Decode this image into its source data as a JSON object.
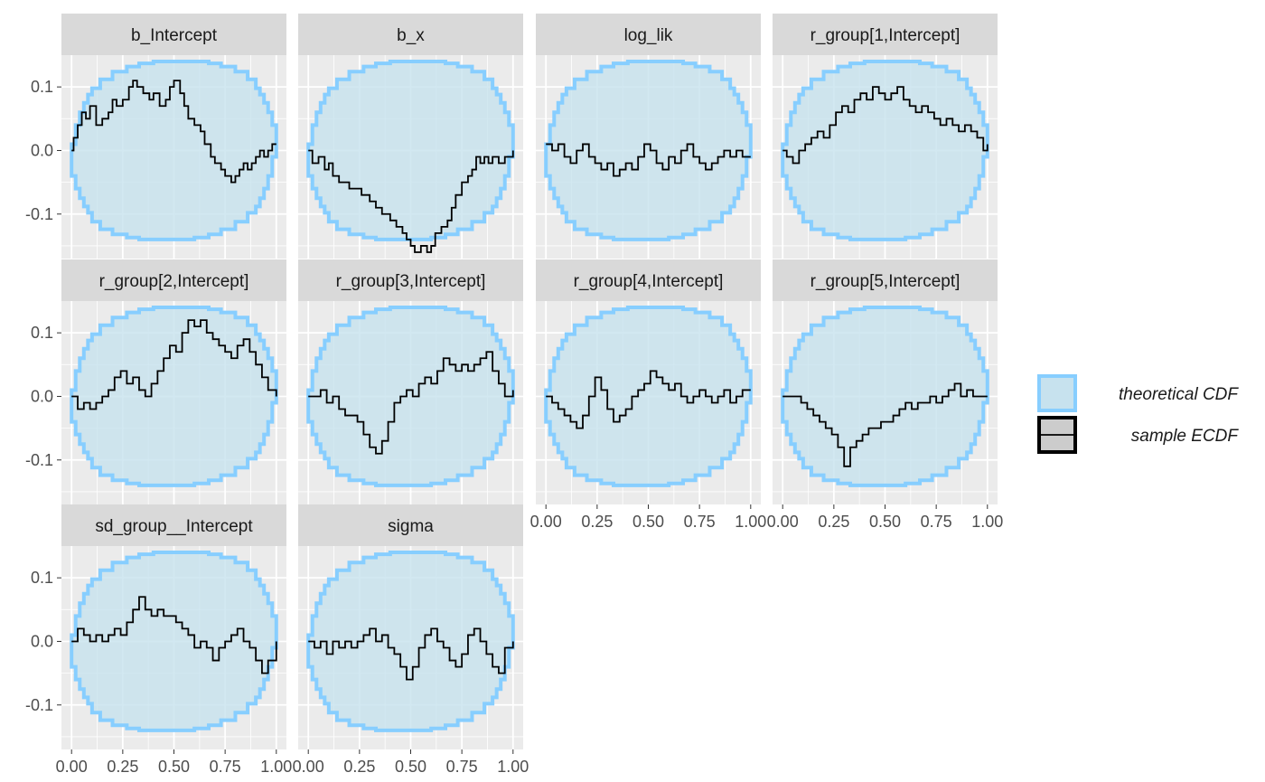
{
  "chart_data": {
    "type": "line",
    "layout": "facet_wrap",
    "ncol": 4,
    "xlim": [
      0,
      1
    ],
    "ylim": [
      -0.17,
      0.15
    ],
    "x_ticks": [
      0,
      0.25,
      0.5,
      0.75,
      1
    ],
    "x_tick_labels": [
      "0.00",
      "0.25",
      "0.50",
      "0.75",
      "1.00"
    ],
    "y_ticks": [
      -0.1,
      0,
      0.1
    ],
    "y_tick_labels": [
      "-0.1",
      "0.0",
      "0.1"
    ],
    "grid": true,
    "legend_position": "right",
    "legend": [
      {
        "key": "band",
        "label": "theoretical CDF",
        "color": "#87ceff",
        "fill": "#c7e2ee"
      },
      {
        "key": "line",
        "label": "sample ECDF",
        "color": "#000000",
        "fill": "#cccccc"
      }
    ],
    "band": {
      "x": [
        0,
        0.02,
        0.04,
        0.06,
        0.08,
        0.1,
        0.14,
        0.2,
        0.27,
        0.33,
        0.4,
        0.5,
        0.6,
        0.67,
        0.73,
        0.8,
        0.86,
        0.9,
        0.92,
        0.94,
        0.96,
        0.98,
        1
      ],
      "upper": [
        0.01,
        0.04,
        0.06,
        0.075,
        0.088,
        0.098,
        0.112,
        0.124,
        0.132,
        0.137,
        0.14,
        0.14,
        0.14,
        0.137,
        0.132,
        0.124,
        0.112,
        0.098,
        0.088,
        0.075,
        0.06,
        0.04,
        0.01
      ],
      "lower": [
        -0.01,
        -0.04,
        -0.06,
        -0.075,
        -0.088,
        -0.098,
        -0.112,
        -0.124,
        -0.132,
        -0.137,
        -0.14,
        -0.14,
        -0.14,
        -0.137,
        -0.132,
        -0.124,
        -0.112,
        -0.098,
        -0.088,
        -0.075,
        -0.06,
        -0.04,
        -0.01
      ]
    },
    "panels": [
      {
        "title": "b_Intercept",
        "x": [
          0,
          0.01,
          0.03,
          0.05,
          0.07,
          0.09,
          0.12,
          0.15,
          0.18,
          0.2,
          0.22,
          0.25,
          0.28,
          0.3,
          0.32,
          0.35,
          0.38,
          0.4,
          0.43,
          0.46,
          0.48,
          0.5,
          0.53,
          0.55,
          0.57,
          0.6,
          0.63,
          0.65,
          0.68,
          0.7,
          0.73,
          0.75,
          0.78,
          0.8,
          0.82,
          0.84,
          0.86,
          0.88,
          0.9,
          0.92,
          0.94,
          0.96,
          0.98,
          1
        ],
        "y": [
          0,
          0.02,
          0.04,
          0.06,
          0.05,
          0.07,
          0.04,
          0.05,
          0.06,
          0.08,
          0.07,
          0.08,
          0.1,
          0.11,
          0.1,
          0.09,
          0.08,
          0.09,
          0.07,
          0.08,
          0.1,
          0.11,
          0.09,
          0.07,
          0.05,
          0.04,
          0.03,
          0.01,
          -0.01,
          -0.02,
          -0.03,
          -0.04,
          -0.05,
          -0.04,
          -0.03,
          -0.02,
          -0.03,
          -0.02,
          -0.01,
          0,
          -0.01,
          0,
          0.01,
          0.01
        ]
      },
      {
        "title": "b_x",
        "x": [
          0,
          0.02,
          0.05,
          0.08,
          0.1,
          0.12,
          0.15,
          0.18,
          0.2,
          0.23,
          0.26,
          0.3,
          0.33,
          0.36,
          0.4,
          0.43,
          0.46,
          0.48,
          0.5,
          0.52,
          0.55,
          0.58,
          0.6,
          0.62,
          0.65,
          0.68,
          0.7,
          0.72,
          0.75,
          0.78,
          0.8,
          0.82,
          0.84,
          0.86,
          0.88,
          0.9,
          0.93,
          0.96,
          1
        ],
        "y": [
          0,
          -0.02,
          -0.01,
          -0.03,
          -0.02,
          -0.04,
          -0.05,
          -0.05,
          -0.06,
          -0.06,
          -0.07,
          -0.08,
          -0.09,
          -0.1,
          -0.11,
          -0.12,
          -0.13,
          -0.14,
          -0.15,
          -0.16,
          -0.15,
          -0.16,
          -0.15,
          -0.13,
          -0.12,
          -0.11,
          -0.09,
          -0.07,
          -0.05,
          -0.04,
          -0.03,
          -0.01,
          -0.02,
          -0.01,
          -0.02,
          -0.01,
          -0.02,
          -0.01,
          0
        ]
      },
      {
        "title": "log_lik",
        "x": [
          0,
          0.03,
          0.06,
          0.09,
          0.12,
          0.15,
          0.18,
          0.21,
          0.24,
          0.27,
          0.3,
          0.33,
          0.36,
          0.39,
          0.42,
          0.45,
          0.48,
          0.51,
          0.54,
          0.57,
          0.6,
          0.63,
          0.66,
          0.69,
          0.72,
          0.75,
          0.78,
          0.81,
          0.84,
          0.87,
          0.9,
          0.93,
          0.96,
          1
        ],
        "y": [
          0.01,
          0,
          0.01,
          -0.01,
          -0.02,
          0,
          0.01,
          -0.01,
          -0.02,
          -0.03,
          -0.02,
          -0.04,
          -0.03,
          -0.02,
          -0.03,
          -0.01,
          0.01,
          0,
          -0.02,
          -0.03,
          -0.01,
          -0.02,
          0,
          0.01,
          -0.01,
          -0.02,
          -0.03,
          -0.02,
          -0.01,
          0,
          -0.01,
          0,
          -0.01,
          -0.01
        ]
      },
      {
        "title": "r_group[1,Intercept]",
        "x": [
          0,
          0.02,
          0.05,
          0.08,
          0.11,
          0.14,
          0.17,
          0.2,
          0.23,
          0.26,
          0.29,
          0.32,
          0.35,
          0.38,
          0.41,
          0.44,
          0.47,
          0.5,
          0.53,
          0.56,
          0.59,
          0.62,
          0.65,
          0.68,
          0.71,
          0.74,
          0.77,
          0.8,
          0.83,
          0.86,
          0.89,
          0.92,
          0.95,
          0.98,
          1
        ],
        "y": [
          0,
          -0.01,
          -0.02,
          0,
          0.01,
          0.02,
          0.03,
          0.02,
          0.04,
          0.06,
          0.07,
          0.06,
          0.08,
          0.09,
          0.08,
          0.1,
          0.09,
          0.08,
          0.09,
          0.1,
          0.08,
          0.07,
          0.06,
          0.07,
          0.06,
          0.05,
          0.04,
          0.05,
          0.04,
          0.03,
          0.04,
          0.03,
          0.02,
          0,
          0.01
        ]
      },
      {
        "title": "r_group[2,Intercept]",
        "x": [
          0,
          0.03,
          0.06,
          0.09,
          0.12,
          0.15,
          0.18,
          0.21,
          0.24,
          0.27,
          0.3,
          0.33,
          0.36,
          0.39,
          0.42,
          0.45,
          0.48,
          0.51,
          0.54,
          0.57,
          0.6,
          0.63,
          0.66,
          0.69,
          0.72,
          0.75,
          0.78,
          0.81,
          0.84,
          0.87,
          0.9,
          0.93,
          0.96,
          1
        ],
        "y": [
          0,
          -0.02,
          -0.01,
          -0.02,
          -0.01,
          0,
          0.01,
          0.03,
          0.04,
          0.02,
          0.03,
          0.01,
          0,
          0.02,
          0.04,
          0.06,
          0.08,
          0.07,
          0.1,
          0.12,
          0.11,
          0.12,
          0.1,
          0.09,
          0.08,
          0.07,
          0.06,
          0.08,
          0.09,
          0.07,
          0.05,
          0.03,
          0.01,
          0
        ]
      },
      {
        "title": "r_group[3,Intercept]",
        "x": [
          0,
          0.03,
          0.06,
          0.09,
          0.12,
          0.15,
          0.18,
          0.21,
          0.24,
          0.27,
          0.3,
          0.33,
          0.36,
          0.39,
          0.42,
          0.45,
          0.48,
          0.51,
          0.54,
          0.57,
          0.6,
          0.63,
          0.66,
          0.69,
          0.72,
          0.75,
          0.78,
          0.81,
          0.84,
          0.87,
          0.9,
          0.93,
          0.96,
          1
        ],
        "y": [
          0,
          0,
          0.01,
          -0.01,
          0,
          -0.02,
          -0.03,
          -0.03,
          -0.04,
          -0.06,
          -0.08,
          -0.09,
          -0.07,
          -0.04,
          -0.01,
          0,
          0.01,
          0,
          0.02,
          0.03,
          0.02,
          0.04,
          0.06,
          0.05,
          0.04,
          0.05,
          0.04,
          0.05,
          0.06,
          0.07,
          0.04,
          0.02,
          0,
          0.01
        ]
      },
      {
        "title": "r_group[4,Intercept]",
        "x": [
          0,
          0.03,
          0.06,
          0.09,
          0.12,
          0.15,
          0.18,
          0.21,
          0.24,
          0.27,
          0.3,
          0.33,
          0.36,
          0.39,
          0.42,
          0.45,
          0.48,
          0.51,
          0.54,
          0.57,
          0.6,
          0.63,
          0.66,
          0.69,
          0.72,
          0.75,
          0.78,
          0.81,
          0.84,
          0.87,
          0.9,
          0.93,
          0.96,
          1
        ],
        "y": [
          0,
          -0.01,
          -0.02,
          -0.03,
          -0.04,
          -0.05,
          -0.03,
          0,
          0.03,
          0.01,
          -0.02,
          -0.04,
          -0.03,
          -0.02,
          0,
          0.01,
          0.02,
          0.04,
          0.03,
          0.02,
          0.01,
          0.02,
          0,
          -0.01,
          0,
          0.01,
          0,
          -0.01,
          0,
          0.01,
          -0.01,
          0,
          0.01,
          0.01
        ]
      },
      {
        "title": "r_group[5,Intercept]",
        "x": [
          0,
          0.03,
          0.06,
          0.09,
          0.12,
          0.15,
          0.18,
          0.21,
          0.24,
          0.27,
          0.3,
          0.33,
          0.36,
          0.39,
          0.42,
          0.45,
          0.48,
          0.51,
          0.54,
          0.57,
          0.6,
          0.63,
          0.66,
          0.69,
          0.72,
          0.75,
          0.78,
          0.81,
          0.84,
          0.87,
          0.9,
          0.93,
          0.96,
          1
        ],
        "y": [
          0,
          0,
          0,
          -0.01,
          -0.02,
          -0.03,
          -0.04,
          -0.05,
          -0.06,
          -0.08,
          -0.11,
          -0.08,
          -0.07,
          -0.06,
          -0.05,
          -0.05,
          -0.04,
          -0.04,
          -0.03,
          -0.02,
          -0.01,
          -0.02,
          -0.01,
          -0.01,
          0,
          -0.01,
          0,
          0.01,
          0.02,
          0,
          0.01,
          0,
          0,
          0
        ]
      },
      {
        "title": "sd_group__Intercept",
        "x": [
          0,
          0.03,
          0.06,
          0.09,
          0.12,
          0.15,
          0.18,
          0.21,
          0.24,
          0.27,
          0.3,
          0.33,
          0.36,
          0.39,
          0.42,
          0.45,
          0.48,
          0.51,
          0.54,
          0.57,
          0.6,
          0.63,
          0.66,
          0.69,
          0.72,
          0.75,
          0.78,
          0.81,
          0.84,
          0.87,
          0.9,
          0.93,
          0.96,
          1
        ],
        "y": [
          0,
          0.02,
          0.01,
          0,
          0.01,
          0,
          0.01,
          0.02,
          0.01,
          0.03,
          0.05,
          0.07,
          0.05,
          0.04,
          0.05,
          0.04,
          0.04,
          0.03,
          0.02,
          0.01,
          -0.01,
          0,
          -0.01,
          -0.03,
          -0.01,
          0,
          0.01,
          0.02,
          0,
          -0.01,
          -0.03,
          -0.05,
          -0.03,
          0
        ]
      },
      {
        "title": "sigma",
        "x": [
          0,
          0.03,
          0.06,
          0.09,
          0.12,
          0.15,
          0.18,
          0.21,
          0.24,
          0.27,
          0.3,
          0.33,
          0.36,
          0.39,
          0.42,
          0.45,
          0.48,
          0.51,
          0.54,
          0.57,
          0.6,
          0.63,
          0.66,
          0.69,
          0.72,
          0.75,
          0.78,
          0.81,
          0.84,
          0.87,
          0.9,
          0.93,
          0.96,
          1
        ],
        "y": [
          0,
          -0.01,
          0,
          -0.02,
          0,
          -0.01,
          0,
          -0.01,
          0,
          0.01,
          0.02,
          0,
          0.01,
          -0.01,
          -0.02,
          -0.04,
          -0.06,
          -0.04,
          -0.01,
          0.01,
          0.02,
          0,
          -0.01,
          -0.03,
          -0.04,
          -0.02,
          0.01,
          0.02,
          0,
          -0.02,
          -0.04,
          -0.05,
          -0.01,
          0
        ]
      }
    ]
  }
}
